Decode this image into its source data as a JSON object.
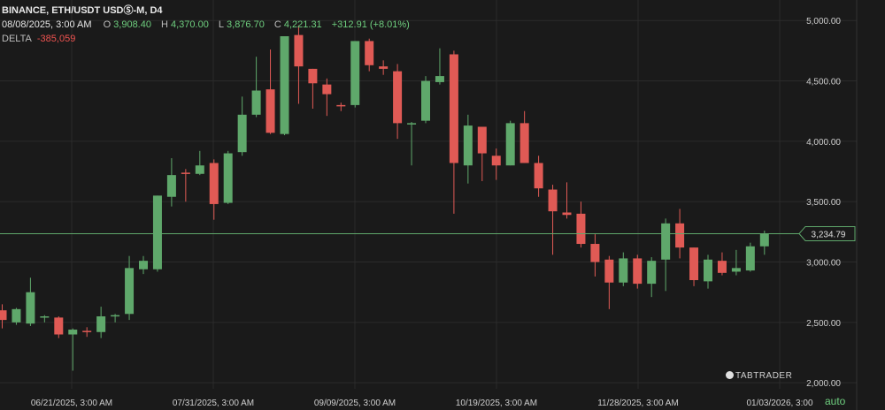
{
  "header": {
    "title": "BINANCE, ETH/USDT USDⓈ-M, D4",
    "date": "08/08/2025, 3:00 AM",
    "o_label": "O",
    "o_value": "3,908.40",
    "h_label": "H",
    "h_value": "4,370.00",
    "l_label": "L",
    "l_value": "3,876.70",
    "c_label": "C",
    "c_value": "4,221.31",
    "change": "+312.91 (+8.01%)",
    "delta_label": "DELTA",
    "delta_value": "-385,059"
  },
  "logo_text": "TABTRADER",
  "auto_label": "auto",
  "colors": {
    "up": "#5fa86b",
    "down": "#e05a55",
    "grid": "#2b2b2b",
    "axis_text": "#cfcfcf",
    "price_line": "#5fa86b",
    "background": "#1a1a1a"
  },
  "chart_data": {
    "type": "candlestick",
    "ylim": [
      1950,
      5170
    ],
    "yticks": [
      "2,000.00",
      "2,500.00",
      "3,000.00",
      "3,500.00",
      "4,000.00",
      "4,500.00",
      "5,000.00"
    ],
    "ytick_values": [
      2000,
      2500,
      3000,
      3500,
      4000,
      4500,
      5000
    ],
    "xtick_labels": [
      "06/21/2025, 3:00 AM",
      "07/31/2025, 3:00 AM",
      "09/09/2025, 3:00 AM",
      "10/19/2025, 3:00 AM",
      "11/28/2025, 3:00 AM",
      "01/03/2026, 3:00"
    ],
    "last_price": 3234.79,
    "last_price_label": "3,234.79",
    "candles": [
      {
        "o": 2600,
        "h": 2650,
        "l": 2450,
        "c": 2520
      },
      {
        "o": 2500,
        "h": 2620,
        "l": 2480,
        "c": 2610
      },
      {
        "o": 2490,
        "h": 2870,
        "l": 2470,
        "c": 2750
      },
      {
        "o": 2540,
        "h": 2560,
        "l": 2500,
        "c": 2550
      },
      {
        "o": 2540,
        "h": 2550,
        "l": 2370,
        "c": 2400
      },
      {
        "o": 2400,
        "h": 2450,
        "l": 2100,
        "c": 2440
      },
      {
        "o": 2430,
        "h": 2460,
        "l": 2380,
        "c": 2420
      },
      {
        "o": 2420,
        "h": 2630,
        "l": 2370,
        "c": 2550
      },
      {
        "o": 2550,
        "h": 2570,
        "l": 2500,
        "c": 2560
      },
      {
        "o": 2570,
        "h": 3050,
        "l": 2520,
        "c": 2950
      },
      {
        "o": 2940,
        "h": 3050,
        "l": 2900,
        "c": 3010
      },
      {
        "o": 2940,
        "h": 3540,
        "l": 2920,
        "c": 3550
      },
      {
        "o": 3540,
        "h": 3860,
        "l": 3460,
        "c": 3720
      },
      {
        "o": 3740,
        "h": 3770,
        "l": 3500,
        "c": 3730
      },
      {
        "o": 3730,
        "h": 3920,
        "l": 3720,
        "c": 3800
      },
      {
        "o": 3820,
        "h": 3850,
        "l": 3350,
        "c": 3480
      },
      {
        "o": 3490,
        "h": 3920,
        "l": 3480,
        "c": 3900
      },
      {
        "o": 3910,
        "h": 4370,
        "l": 3880,
        "c": 4220
      },
      {
        "o": 4220,
        "h": 4700,
        "l": 4200,
        "c": 4420
      },
      {
        "o": 4430,
        "h": 4760,
        "l": 4060,
        "c": 4070
      },
      {
        "o": 4060,
        "h": 4860,
        "l": 4050,
        "c": 4870
      },
      {
        "o": 4880,
        "h": 4960,
        "l": 4310,
        "c": 4620
      },
      {
        "o": 4600,
        "h": 4600,
        "l": 4270,
        "c": 4480
      },
      {
        "o": 4470,
        "h": 4520,
        "l": 4210,
        "c": 4390
      },
      {
        "o": 4300,
        "h": 4320,
        "l": 4250,
        "c": 4290
      },
      {
        "o": 4300,
        "h": 4830,
        "l": 4280,
        "c": 4830
      },
      {
        "o": 4830,
        "h": 4850,
        "l": 4580,
        "c": 4630
      },
      {
        "o": 4620,
        "h": 4670,
        "l": 4550,
        "c": 4600
      },
      {
        "o": 4580,
        "h": 4640,
        "l": 4020,
        "c": 4150
      },
      {
        "o": 4150,
        "h": 4160,
        "l": 3800,
        "c": 4150
      },
      {
        "o": 4170,
        "h": 4540,
        "l": 4150,
        "c": 4500
      },
      {
        "o": 4490,
        "h": 4770,
        "l": 4470,
        "c": 4540
      },
      {
        "o": 4720,
        "h": 4750,
        "l": 3400,
        "c": 3820
      },
      {
        "o": 3800,
        "h": 4220,
        "l": 3650,
        "c": 4130
      },
      {
        "o": 4120,
        "h": 4120,
        "l": 3670,
        "c": 3900
      },
      {
        "o": 3880,
        "h": 3940,
        "l": 3680,
        "c": 3800
      },
      {
        "o": 3800,
        "h": 4170,
        "l": 3800,
        "c": 4150
      },
      {
        "o": 4150,
        "h": 4250,
        "l": 3820,
        "c": 3820
      },
      {
        "o": 3820,
        "h": 3880,
        "l": 3540,
        "c": 3610
      },
      {
        "o": 3600,
        "h": 3640,
        "l": 3060,
        "c": 3420
      },
      {
        "o": 3410,
        "h": 3660,
        "l": 3360,
        "c": 3390
      },
      {
        "o": 3400,
        "h": 3500,
        "l": 3120,
        "c": 3150
      },
      {
        "o": 3150,
        "h": 3230,
        "l": 2880,
        "c": 3000
      },
      {
        "o": 3020,
        "h": 3050,
        "l": 2610,
        "c": 2830
      },
      {
        "o": 2830,
        "h": 3080,
        "l": 2800,
        "c": 3030
      },
      {
        "o": 3030,
        "h": 3060,
        "l": 2780,
        "c": 2820
      },
      {
        "o": 2820,
        "h": 3040,
        "l": 2710,
        "c": 3010
      },
      {
        "o": 3020,
        "h": 3360,
        "l": 2760,
        "c": 3320
      },
      {
        "o": 3320,
        "h": 3440,
        "l": 3030,
        "c": 3120
      },
      {
        "o": 3120,
        "h": 3100,
        "l": 2800,
        "c": 2850
      },
      {
        "o": 2840,
        "h": 3060,
        "l": 2780,
        "c": 3020
      },
      {
        "o": 3010,
        "h": 3080,
        "l": 2890,
        "c": 2910
      },
      {
        "o": 2920,
        "h": 3100,
        "l": 2890,
        "c": 2950
      },
      {
        "o": 2930,
        "h": 3160,
        "l": 2920,
        "c": 3130
      },
      {
        "o": 3130,
        "h": 3260,
        "l": 3060,
        "c": 3234.79
      }
    ]
  }
}
